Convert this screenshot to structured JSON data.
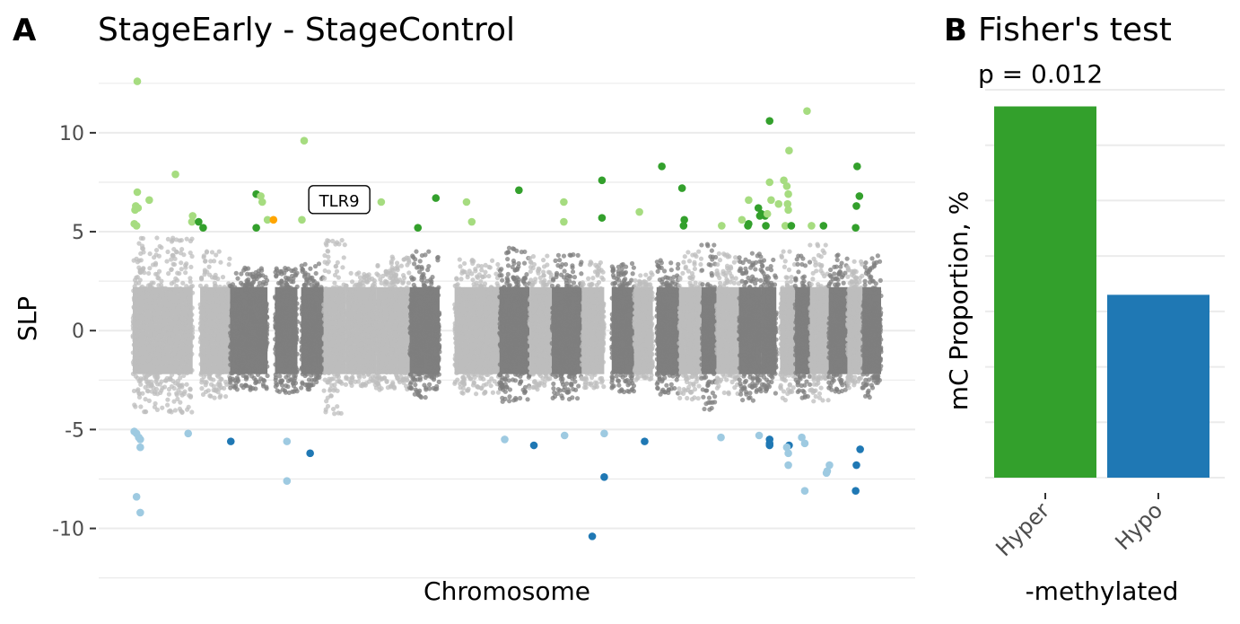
{
  "chart_data": [
    {
      "type": "scatter",
      "panel_label": "A",
      "title": "StageEarly - StageControl",
      "xlabel": "Chromosome",
      "ylabel": "SLP",
      "ylim": [
        -11.2,
        12.9
      ],
      "yticks": [
        -10,
        -5,
        0,
        5,
        10
      ],
      "ytick_labels": [
        "-10",
        "-5",
        "0",
        "5",
        "10"
      ],
      "grid": true,
      "colors": {
        "chrom_light": "#bdbdbd",
        "chrom_dark": "#7f7f7f",
        "hyper_light": "#a6dc80",
        "hyper_dark": "#33a02c",
        "hypo_light": "#9ecae1",
        "hypo_dark": "#1f78b4",
        "highlight": "#ffa500"
      },
      "chromosomes": [
        {
          "x0": 0.0,
          "x1": 0.08,
          "tone": "light",
          "lo": -4.2,
          "hi": 4.7
        },
        {
          "x0": 0.09,
          "x1": 0.13,
          "tone": "light",
          "lo": -3.4,
          "hi": 4.2
        },
        {
          "x0": 0.13,
          "x1": 0.18,
          "tone": "dark",
          "lo": -3.0,
          "hi": 3.2
        },
        {
          "x0": 0.19,
          "x1": 0.22,
          "tone": "dark",
          "lo": -3.2,
          "hi": 3.2
        },
        {
          "x0": 0.225,
          "x1": 0.255,
          "tone": "dark",
          "lo": -3.1,
          "hi": 3.4
        },
        {
          "x0": 0.255,
          "x1": 0.285,
          "tone": "light",
          "lo": -4.2,
          "hi": 4.8
        },
        {
          "x0": 0.285,
          "x1": 0.325,
          "tone": "light",
          "lo": -2.8,
          "hi": 3.0
        },
        {
          "x0": 0.325,
          "x1": 0.37,
          "tone": "light",
          "lo": -3.0,
          "hi": 3.8
        },
        {
          "x0": 0.37,
          "x1": 0.41,
          "tone": "dark",
          "lo": -3.4,
          "hi": 4.2
        },
        {
          "x0": 0.43,
          "x1": 0.49,
          "tone": "light",
          "lo": -3.2,
          "hi": 3.6
        },
        {
          "x0": 0.49,
          "x1": 0.53,
          "tone": "dark",
          "lo": -3.6,
          "hi": 4.2
        },
        {
          "x0": 0.53,
          "x1": 0.56,
          "tone": "light",
          "lo": -3.0,
          "hi": 3.8
        },
        {
          "x0": 0.56,
          "x1": 0.6,
          "tone": "dark",
          "lo": -3.5,
          "hi": 4.0
        },
        {
          "x0": 0.6,
          "x1": 0.63,
          "tone": "light",
          "lo": -2.9,
          "hi": 3.5
        },
        {
          "x0": 0.64,
          "x1": 0.67,
          "tone": "dark",
          "lo": -3.2,
          "hi": 3.5
        },
        {
          "x0": 0.67,
          "x1": 0.695,
          "tone": "light",
          "lo": -2.5,
          "hi": 3.0
        },
        {
          "x0": 0.7,
          "x1": 0.73,
          "tone": "dark",
          "lo": -3.4,
          "hi": 3.6
        },
        {
          "x0": 0.73,
          "x1": 0.76,
          "tone": "light",
          "lo": -3.5,
          "hi": 4.2
        },
        {
          "x0": 0.76,
          "x1": 0.78,
          "tone": "dark",
          "lo": -4.0,
          "hi": 4.4
        },
        {
          "x0": 0.78,
          "x1": 0.81,
          "tone": "light",
          "lo": -3.3,
          "hi": 3.9
        },
        {
          "x0": 0.81,
          "x1": 0.84,
          "tone": "dark",
          "lo": -3.6,
          "hi": 4.0
        },
        {
          "x0": 0.84,
          "x1": 0.86,
          "tone": "dark",
          "lo": -3.2,
          "hi": 3.6
        },
        {
          "x0": 0.865,
          "x1": 0.885,
          "tone": "light",
          "lo": -3.6,
          "hi": 4.2
        },
        {
          "x0": 0.885,
          "x1": 0.905,
          "tone": "dark",
          "lo": -3.4,
          "hi": 4.0
        },
        {
          "x0": 0.905,
          "x1": 0.93,
          "tone": "light",
          "lo": -3.6,
          "hi": 4.4
        },
        {
          "x0": 0.93,
          "x1": 0.955,
          "tone": "dark",
          "lo": -3.2,
          "hi": 4.0
        },
        {
          "x0": 0.955,
          "x1": 0.975,
          "tone": "light",
          "lo": -2.9,
          "hi": 3.6
        },
        {
          "x0": 0.975,
          "x1": 1.0,
          "tone": "dark",
          "lo": -3.4,
          "hi": 4.0
        }
      ],
      "significant_points": [
        {
          "x": 0.006,
          "y": 12.6,
          "c": "hyper_light"
        },
        {
          "x": 0.006,
          "y": 7.0,
          "c": "hyper_light"
        },
        {
          "x": 0.004,
          "y": 6.3,
          "c": "hyper_light"
        },
        {
          "x": 0.007,
          "y": 6.2,
          "c": "hyper_light"
        },
        {
          "x": 0.003,
          "y": 6.1,
          "c": "hyper_light"
        },
        {
          "x": 0.022,
          "y": 6.6,
          "c": "hyper_light"
        },
        {
          "x": 0.002,
          "y": 5.4,
          "c": "hyper_light"
        },
        {
          "x": 0.005,
          "y": 5.3,
          "c": "hyper_light"
        },
        {
          "x": 0.057,
          "y": 7.9,
          "c": "hyper_light"
        },
        {
          "x": 0.08,
          "y": 5.8,
          "c": "hyper_light"
        },
        {
          "x": 0.079,
          "y": 5.5,
          "c": "hyper_light"
        },
        {
          "x": 0.088,
          "y": 5.5,
          "c": "hyper_dark"
        },
        {
          "x": 0.094,
          "y": 5.2,
          "c": "hyper_dark"
        },
        {
          "x": 0.165,
          "y": 6.9,
          "c": "hyper_dark"
        },
        {
          "x": 0.171,
          "y": 6.8,
          "c": "hyper_light"
        },
        {
          "x": 0.173,
          "y": 6.5,
          "c": "hyper_light"
        },
        {
          "x": 0.165,
          "y": 5.2,
          "c": "hyper_dark"
        },
        {
          "x": 0.18,
          "y": 5.6,
          "c": "hyper_light"
        },
        {
          "x": 0.188,
          "y": 5.6,
          "c": "highlight"
        },
        {
          "x": 0.226,
          "y": 5.6,
          "c": "hyper_light"
        },
        {
          "x": 0.229,
          "y": 9.6,
          "c": "hyper_light"
        },
        {
          "x": 0.332,
          "y": 6.5,
          "c": "hyper_light"
        },
        {
          "x": 0.381,
          "y": 5.2,
          "c": "hyper_dark"
        },
        {
          "x": 0.405,
          "y": 6.7,
          "c": "hyper_dark"
        },
        {
          "x": 0.446,
          "y": 6.5,
          "c": "hyper_light"
        },
        {
          "x": 0.453,
          "y": 5.5,
          "c": "hyper_light"
        },
        {
          "x": 0.516,
          "y": 7.1,
          "c": "hyper_dark"
        },
        {
          "x": 0.576,
          "y": 6.5,
          "c": "hyper_light"
        },
        {
          "x": 0.576,
          "y": 5.5,
          "c": "hyper_light"
        },
        {
          "x": 0.627,
          "y": 7.6,
          "c": "hyper_dark"
        },
        {
          "x": 0.627,
          "y": 5.7,
          "c": "hyper_dark"
        },
        {
          "x": 0.677,
          "y": 6.0,
          "c": "hyper_light"
        },
        {
          "x": 0.707,
          "y": 8.3,
          "c": "hyper_dark"
        },
        {
          "x": 0.734,
          "y": 7.2,
          "c": "hyper_dark"
        },
        {
          "x": 0.737,
          "y": 5.6,
          "c": "hyper_dark"
        },
        {
          "x": 0.736,
          "y": 5.3,
          "c": "hyper_dark"
        },
        {
          "x": 0.787,
          "y": 5.3,
          "c": "hyper_light"
        },
        {
          "x": 0.814,
          "y": 5.6,
          "c": "hyper_light"
        },
        {
          "x": 0.823,
          "y": 6.6,
          "c": "hyper_light"
        },
        {
          "x": 0.823,
          "y": 5.4,
          "c": "hyper_dark"
        },
        {
          "x": 0.822,
          "y": 5.3,
          "c": "hyper_dark"
        },
        {
          "x": 0.836,
          "y": 6.2,
          "c": "hyper_dark"
        },
        {
          "x": 0.84,
          "y": 5.9,
          "c": "hyper_dark"
        },
        {
          "x": 0.838,
          "y": 5.8,
          "c": "hyper_dark"
        },
        {
          "x": 0.845,
          "y": 5.8,
          "c": "hyper_dark"
        },
        {
          "x": 0.848,
          "y": 5.9,
          "c": "hyper_light"
        },
        {
          "x": 0.846,
          "y": 5.3,
          "c": "hyper_dark"
        },
        {
          "x": 0.851,
          "y": 10.6,
          "c": "hyper_dark"
        },
        {
          "x": 0.851,
          "y": 7.5,
          "c": "hyper_light"
        },
        {
          "x": 0.853,
          "y": 6.6,
          "c": "hyper_light"
        },
        {
          "x": 0.863,
          "y": 6.4,
          "c": "hyper_light"
        },
        {
          "x": 0.87,
          "y": 7.6,
          "c": "hyper_light"
        },
        {
          "x": 0.874,
          "y": 7.3,
          "c": "hyper_light"
        },
        {
          "x": 0.877,
          "y": 9.1,
          "c": "hyper_light"
        },
        {
          "x": 0.876,
          "y": 6.9,
          "c": "hyper_light"
        },
        {
          "x": 0.875,
          "y": 6.4,
          "c": "hyper_light"
        },
        {
          "x": 0.876,
          "y": 6.1,
          "c": "hyper_light"
        },
        {
          "x": 0.872,
          "y": 5.3,
          "c": "hyper_light"
        },
        {
          "x": 0.88,
          "y": 5.3,
          "c": "hyper_dark"
        },
        {
          "x": 0.901,
          "y": 11.1,
          "c": "hyper_light"
        },
        {
          "x": 0.907,
          "y": 5.3,
          "c": "hyper_light"
        },
        {
          "x": 0.923,
          "y": 5.3,
          "c": "hyper_dark"
        },
        {
          "x": 0.968,
          "y": 8.3,
          "c": "hyper_dark"
        },
        {
          "x": 0.971,
          "y": 6.8,
          "c": "hyper_dark"
        },
        {
          "x": 0.967,
          "y": 6.3,
          "c": "hyper_dark"
        },
        {
          "x": 0.966,
          "y": 5.2,
          "c": "hyper_dark"
        },
        {
          "x": 0.002,
          "y": -5.1,
          "c": "hypo_light"
        },
        {
          "x": 0.005,
          "y": -5.2,
          "c": "hypo_light"
        },
        {
          "x": 0.008,
          "y": -5.4,
          "c": "hypo_light"
        },
        {
          "x": 0.01,
          "y": -5.5,
          "c": "hypo_light"
        },
        {
          "x": 0.01,
          "y": -5.9,
          "c": "hypo_light"
        },
        {
          "x": 0.005,
          "y": -8.4,
          "c": "hypo_light"
        },
        {
          "x": 0.01,
          "y": -9.2,
          "c": "hypo_light"
        },
        {
          "x": 0.074,
          "y": -5.2,
          "c": "hypo_light"
        },
        {
          "x": 0.131,
          "y": -5.6,
          "c": "hypo_dark"
        },
        {
          "x": 0.206,
          "y": -5.6,
          "c": "hypo_light"
        },
        {
          "x": 0.206,
          "y": -7.6,
          "c": "hypo_light"
        },
        {
          "x": 0.237,
          "y": -6.2,
          "c": "hypo_dark"
        },
        {
          "x": 0.497,
          "y": -5.5,
          "c": "hypo_light"
        },
        {
          "x": 0.536,
          "y": -5.8,
          "c": "hypo_dark"
        },
        {
          "x": 0.577,
          "y": -5.3,
          "c": "hypo_light"
        },
        {
          "x": 0.614,
          "y": -10.4,
          "c": "hypo_dark"
        },
        {
          "x": 0.63,
          "y": -5.2,
          "c": "hypo_light"
        },
        {
          "x": 0.63,
          "y": -7.4,
          "c": "hypo_dark"
        },
        {
          "x": 0.684,
          "y": -5.6,
          "c": "hypo_dark"
        },
        {
          "x": 0.786,
          "y": -5.4,
          "c": "hypo_light"
        },
        {
          "x": 0.837,
          "y": -5.3,
          "c": "hypo_light"
        },
        {
          "x": 0.851,
          "y": -5.5,
          "c": "hypo_dark"
        },
        {
          "x": 0.851,
          "y": -5.8,
          "c": "hypo_dark"
        },
        {
          "x": 0.851,
          "y": -5.7,
          "c": "hypo_dark"
        },
        {
          "x": 0.877,
          "y": -5.8,
          "c": "hypo_dark"
        },
        {
          "x": 0.876,
          "y": -6.2,
          "c": "hypo_light"
        },
        {
          "x": 0.876,
          "y": -6.8,
          "c": "hypo_light"
        },
        {
          "x": 0.874,
          "y": -5.9,
          "c": "hypo_light"
        },
        {
          "x": 0.894,
          "y": -5.4,
          "c": "hypo_light"
        },
        {
          "x": 0.898,
          "y": -5.7,
          "c": "hypo_light"
        },
        {
          "x": 0.898,
          "y": -8.1,
          "c": "hypo_light"
        },
        {
          "x": 0.931,
          "y": -6.8,
          "c": "hypo_light"
        },
        {
          "x": 0.928,
          "y": -7.1,
          "c": "hypo_light"
        },
        {
          "x": 0.927,
          "y": -7.2,
          "c": "hypo_light"
        },
        {
          "x": 0.966,
          "y": -8.1,
          "c": "hypo_dark"
        },
        {
          "x": 0.967,
          "y": -6.8,
          "c": "hypo_dark"
        },
        {
          "x": 0.972,
          "y": -6.0,
          "c": "hypo_dark"
        }
      ],
      "annotations": [
        {
          "text": "TLR9",
          "x": 0.24,
          "y": 6.6
        }
      ]
    },
    {
      "type": "bar",
      "panel_label": "B",
      "title": "Fisher's test",
      "subtitle": "p = 0.012",
      "xlabel": "-methylated",
      "ylabel": "mC Proportion, %",
      "categories": [
        "Hyper",
        "Hypo"
      ],
      "values": [
        67,
        33
      ],
      "ylim": [
        0,
        70
      ],
      "colors": [
        "#33a02c",
        "#1f78b4"
      ],
      "grid": true
    }
  ]
}
